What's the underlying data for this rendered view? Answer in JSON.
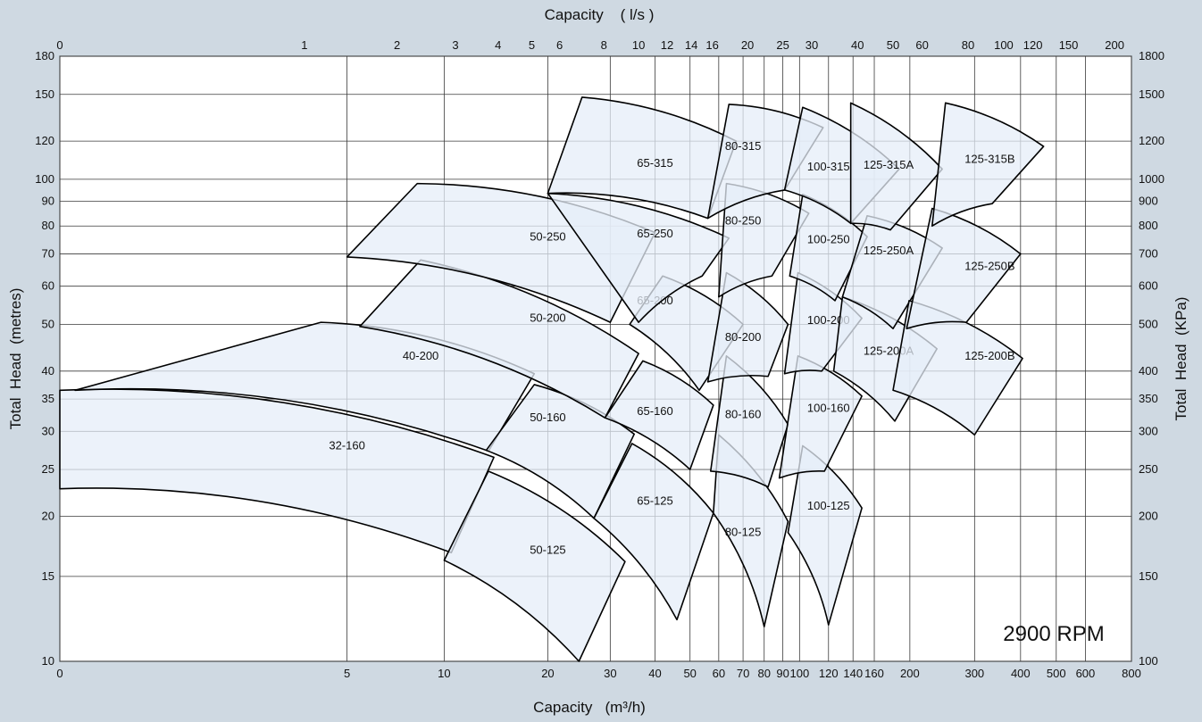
{
  "chart_data": {
    "type": "area",
    "title_top": "Capacity    ( l/s )",
    "xlabel": "Capacity   (m³/h)",
    "ylabel_left": "Total  Head  (metres)",
    "ylabel_right": "Total  Head  (KPa)",
    "annotation": "2900 RPM",
    "x_scale": "log(1+x)",
    "y_scale": "log",
    "xlim": [
      0,
      800
    ],
    "ylim": [
      10,
      180
    ],
    "grid": true,
    "x_ticks": [
      "0",
      "5",
      "10",
      "20",
      "30",
      "40",
      "50",
      "60",
      "70",
      "80",
      "90",
      "100",
      "120",
      "140",
      "160",
      "200",
      "300",
      "400",
      "500",
      "600",
      "800"
    ],
    "x_ticks_top": [
      "0",
      "1",
      "2",
      "3",
      "4",
      "5",
      "6",
      "8",
      "10",
      "12",
      "14",
      "16",
      "20",
      "25",
      "30",
      "40",
      "50",
      "60",
      "80",
      "100",
      "120",
      "150",
      "200"
    ],
    "x_ticks_top_m3h": [
      0,
      3.6,
      7.2,
      10.8,
      14.4,
      18,
      21.6,
      28.8,
      36,
      43.2,
      50.4,
      57.6,
      72,
      90,
      108,
      144,
      180,
      216,
      288,
      360,
      432,
      540,
      720
    ],
    "y_ticks": [
      "10",
      "15",
      "20",
      "25",
      "30",
      "35",
      "40",
      "50",
      "60",
      "70",
      "80",
      "90",
      "100",
      "120",
      "150",
      "180"
    ],
    "y_ticks_right": [
      "100",
      "150",
      "200",
      "250",
      "300",
      "350",
      "400",
      "500",
      "600",
      "700",
      "800",
      "900",
      "1000",
      "1200",
      "1500",
      "1800"
    ],
    "colors": {
      "background": "#cfd9e2",
      "plot_bg": "#ffffff",
      "zone_fill": "#e5eef8",
      "zone_edge": "#000000",
      "grid": "#3a3a3a"
    },
    "zones": [
      {
        "label": "32-160",
        "label_at": [
          5,
          28
        ],
        "bl": [
          0,
          22.8
        ],
        "tl": [
          0,
          36.5
        ],
        "tr": [
          14,
          26.5
        ],
        "br": [
          10.5,
          16.8
        ]
      },
      {
        "label": "40-200",
        "label_at": [
          8.5,
          43
        ],
        "bl": [
          0.1,
          36.5
        ],
        "tl": [
          4.1,
          50.5
        ],
        "tr": [
          18.3,
          39.5
        ],
        "br": [
          13.5,
          27.3
        ]
      },
      {
        "label": "50-125",
        "label_at": [
          20,
          17
        ],
        "bl": [
          10,
          16.2
        ],
        "tl": [
          13.5,
          24.8
        ],
        "tr": [
          33,
          16.1
        ],
        "br": [
          24.5,
          10
        ]
      },
      {
        "label": "50-160",
        "label_at": [
          20,
          32
        ],
        "bl": [
          13.3,
          27.4
        ],
        "tl": [
          18.3,
          37.5
        ],
        "tr": [
          35,
          29.6
        ],
        "br": [
          27,
          19.8
        ]
      },
      {
        "label": "50-200",
        "label_at": [
          20,
          51.5
        ],
        "bl": [
          5.5,
          49.5
        ],
        "tl": [
          8.5,
          68
        ],
        "tr": [
          36,
          43.5
        ],
        "br": [
          29,
          32
        ]
      },
      {
        "label": "50-250",
        "label_at": [
          20,
          76
        ],
        "bl": [
          5,
          69
        ],
        "tl": [
          8.3,
          98
        ],
        "tr": [
          40,
          77.5
        ],
        "br": [
          30,
          50.5
        ]
      },
      {
        "label": "65-125",
        "label_at": [
          40,
          21.5
        ],
        "bl": [
          27,
          19.8
        ],
        "tl": [
          34.5,
          28.3
        ],
        "tr": [
          58,
          20.3
        ],
        "br": [
          46,
          12.2
        ]
      },
      {
        "label": "65-160",
        "label_at": [
          40,
          33
        ],
        "bl": [
          29,
          32
        ],
        "tl": [
          37,
          42
        ],
        "tr": [
          58,
          34
        ],
        "br": [
          50,
          25
        ]
      },
      {
        "label": "65-200",
        "label_at": [
          40,
          56
        ],
        "bl": [
          34,
          50
        ],
        "tl": [
          42,
          63
        ],
        "tr": [
          70,
          50
        ],
        "br": [
          53,
          36.5
        ]
      },
      {
        "label": "65-250",
        "label_at": [
          40,
          77
        ],
        "bl": [
          36,
          50.5
        ],
        "tl": [
          20,
          93.5
        ],
        "tr": [
          64,
          75.5
        ],
        "br": [
          54,
          63
        ]
      },
      {
        "label": "65-315",
        "label_at": [
          40,
          108
        ],
        "bl": [
          20,
          93.5
        ],
        "tl": [
          25,
          148
        ],
        "tr": [
          67,
          120
        ],
        "br": [
          56,
          83
        ]
      },
      {
        "label": "80-125",
        "label_at": [
          70,
          18.5
        ],
        "bl": [
          58,
          20.3
        ],
        "tl": [
          60,
          29.5
        ],
        "tr": [
          93,
          19.5
        ],
        "br": [
          80,
          11.8
        ]
      },
      {
        "label": "80-160",
        "label_at": [
          70,
          32.5
        ],
        "bl": [
          57,
          24.8
        ],
        "tl": [
          63,
          43
        ],
        "tr": [
          93,
          31
        ],
        "br": [
          82,
          23
        ]
      },
      {
        "label": "80-200",
        "label_at": [
          70,
          47
        ],
        "bl": [
          56,
          38
        ],
        "tl": [
          63,
          64
        ],
        "tr": [
          93,
          50
        ],
        "br": [
          82,
          39
        ]
      },
      {
        "label": "80-250",
        "label_at": [
          70,
          82
        ],
        "bl": [
          60,
          57
        ],
        "tl": [
          63,
          98
        ],
        "tr": [
          106,
          85
        ],
        "br": [
          84,
          63
        ]
      },
      {
        "label": "80-315",
        "label_at": [
          70,
          117
        ],
        "bl": [
          56,
          83
        ],
        "tl": [
          64,
          143
        ],
        "tr": [
          116,
          128
        ],
        "br": [
          91,
          95
        ]
      },
      {
        "label": "100-125",
        "label_at": [
          120,
          21
        ],
        "bl": [
          93,
          18.5
        ],
        "tl": [
          102,
          28
        ],
        "tr": [
          148,
          20.8
        ],
        "br": [
          120,
          11.9
        ]
      },
      {
        "label": "100-160",
        "label_at": [
          120,
          33.5
        ],
        "bl": [
          88,
          24
        ],
        "tl": [
          99,
          43
        ],
        "tr": [
          148,
          35.5
        ],
        "br": [
          117,
          24.8
        ]
      },
      {
        "label": "100-200",
        "label_at": [
          120,
          51
        ],
        "bl": [
          91,
          39.5
        ],
        "tl": [
          99,
          64
        ],
        "tr": [
          148,
          51.5
        ],
        "br": [
          115,
          40
        ]
      },
      {
        "label": "100-250",
        "label_at": [
          120,
          75
        ],
        "bl": [
          94,
          63
        ],
        "tl": [
          102,
          93
        ],
        "tr": [
          153,
          76
        ],
        "br": [
          125,
          56
        ]
      },
      {
        "label": "100-315",
        "label_at": [
          120,
          106
        ],
        "bl": [
          91,
          95
        ],
        "tl": [
          102,
          141
        ],
        "tr": [
          187,
          105
        ],
        "br": [
          138,
          81
        ]
      },
      {
        "label": "125-200A",
        "label_at": [
          175,
          44
        ],
        "bl": [
          124,
          40
        ],
        "tl": [
          131,
          57
        ],
        "tr": [
          237,
          44.5
        ],
        "br": [
          182,
          31.5
        ]
      },
      {
        "label": "125-250A",
        "label_at": [
          175,
          71
        ],
        "bl": [
          131,
          57
        ],
        "tl": [
          153,
          84
        ],
        "tr": [
          245,
          72
        ],
        "br": [
          180,
          49
        ]
      },
      {
        "label": "125-315A",
        "label_at": [
          175,
          107
        ],
        "bl": [
          138,
          81
        ],
        "tl": [
          138,
          144
        ],
        "tr": [
          245,
          105
        ],
        "br": [
          177,
          78.5
        ]
      },
      {
        "label": "125-200B",
        "label_at": [
          330,
          43
        ],
        "bl": [
          180,
          36.5
        ],
        "tl": [
          199,
          56
        ],
        "tr": [
          405,
          42.5
        ],
        "br": [
          300,
          29.5
        ]
      },
      {
        "label": "125-250B",
        "label_at": [
          330,
          66
        ],
        "bl": [
          196,
          49
        ],
        "tl": [
          230,
          87
        ],
        "tr": [
          400,
          70
        ],
        "br": [
          285,
          50.5
        ]
      },
      {
        "label": "125-315B",
        "label_at": [
          330,
          110
        ],
        "bl": [
          230,
          80
        ],
        "tl": [
          250,
          144
        ],
        "tr": [
          462,
          117
        ],
        "br": [
          335,
          89
        ]
      }
    ]
  }
}
